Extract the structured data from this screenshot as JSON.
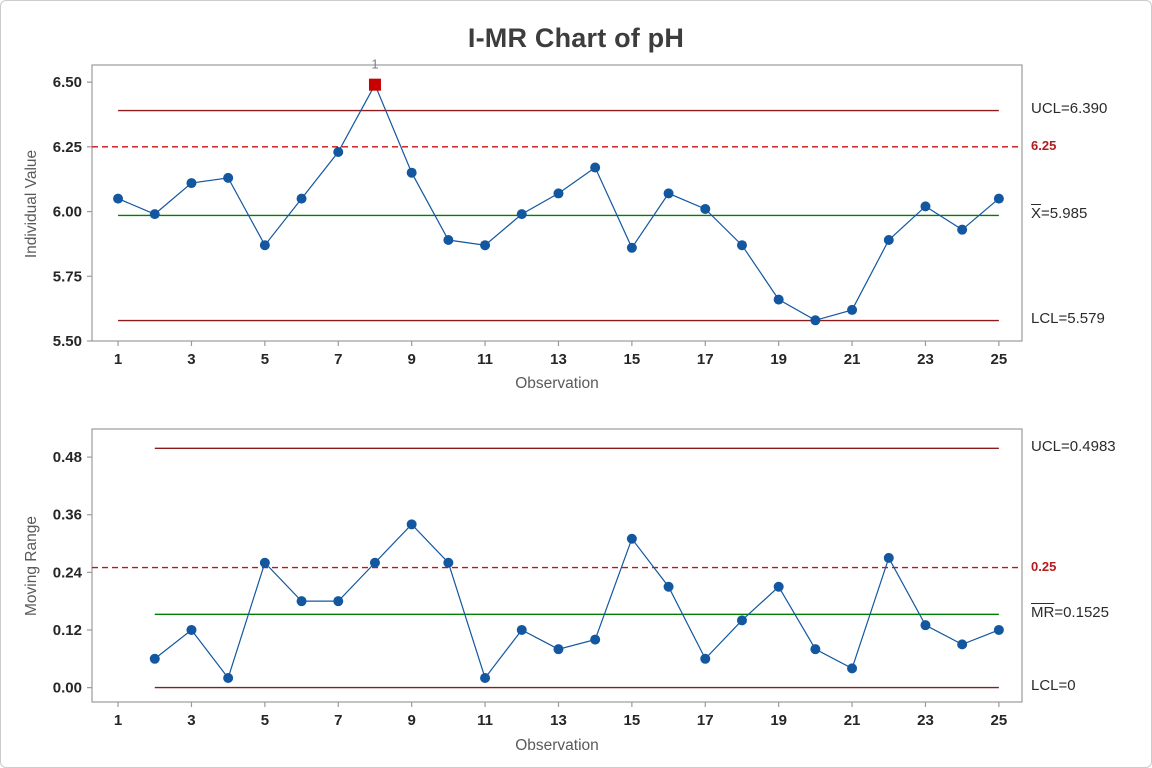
{
  "title": "I-MR Chart of pH",
  "chart_data": [
    {
      "type": "line",
      "name": "individuals-chart",
      "title": "I-MR Chart of pH",
      "xlabel": "Observation",
      "ylabel": "Individual Value",
      "x": [
        1,
        2,
        3,
        4,
        5,
        6,
        7,
        8,
        9,
        10,
        11,
        12,
        13,
        14,
        15,
        16,
        17,
        18,
        19,
        20,
        21,
        22,
        23,
        24,
        25
      ],
      "values": [
        6.05,
        5.99,
        6.11,
        6.13,
        5.87,
        6.05,
        6.23,
        6.49,
        6.15,
        5.89,
        5.87,
        5.99,
        6.07,
        6.17,
        5.86,
        6.07,
        6.01,
        5.87,
        5.66,
        5.58,
        5.62,
        5.89,
        6.02,
        5.93,
        6.05
      ],
      "out_of_control": [
        {
          "index": 8,
          "label": "1"
        }
      ],
      "xlim": [
        0.29,
        25.63
      ],
      "ylim": [
        5.5,
        6.566
      ],
      "y_ticks": [
        5.5,
        5.75,
        6.0,
        6.25,
        6.5
      ],
      "y_tick_labels": [
        "5.50",
        "5.75",
        "6.00",
        "6.25",
        "6.50"
      ],
      "x_ticks": [
        1,
        3,
        5,
        7,
        9,
        11,
        13,
        15,
        17,
        19,
        21,
        23,
        25
      ],
      "x_tick_labels": [
        "1",
        "3",
        "5",
        "7",
        "9",
        "11",
        "13",
        "15",
        "17",
        "19",
        "21",
        "23",
        "25"
      ],
      "grid": "off",
      "legend_position": "right-margin",
      "series_color": "#1257a0",
      "out_color": "#c80000",
      "ref_lines": [
        {
          "role": "ucl",
          "value": 6.39,
          "style": "solid",
          "color": "#8e1b1b"
        },
        {
          "role": "spec",
          "value": 6.25,
          "style": "dashed",
          "color": "#c41212"
        },
        {
          "role": "center",
          "value": 5.985,
          "style": "solid",
          "color": "#008000"
        },
        {
          "role": "lcl",
          "value": 5.579,
          "style": "solid",
          "color": "#8e1b1b"
        }
      ],
      "right_labels": {
        "ucl": "UCL=6.390",
        "spec": "6.25",
        "center_overline": "X",
        "center_rest": "=5.985",
        "lcl": "LCL=5.579"
      }
    },
    {
      "type": "line",
      "name": "moving-range-chart",
      "title": "",
      "xlabel": "Observation",
      "ylabel": "Moving Range",
      "x": [
        2,
        3,
        4,
        5,
        6,
        7,
        8,
        9,
        10,
        11,
        12,
        13,
        14,
        15,
        16,
        17,
        18,
        19,
        20,
        21,
        22,
        23,
        24,
        25
      ],
      "values": [
        0.06,
        0.12,
        0.02,
        0.26,
        0.18,
        0.18,
        0.26,
        0.34,
        0.26,
        0.02,
        0.12,
        0.08,
        0.1,
        0.31,
        0.21,
        0.06,
        0.14,
        0.21,
        0.08,
        0.04,
        0.27,
        0.13,
        0.09,
        0.12
      ],
      "out_of_control": [],
      "xlim": [
        0.29,
        25.63
      ],
      "ylim": [
        -0.03,
        0.5385
      ],
      "y_ticks": [
        0.0,
        0.12,
        0.24,
        0.36,
        0.48
      ],
      "y_tick_labels": [
        "0.00",
        "0.12",
        "0.24",
        "0.36",
        "0.48"
      ],
      "x_ticks": [
        1,
        3,
        5,
        7,
        9,
        11,
        13,
        15,
        17,
        19,
        21,
        23,
        25
      ],
      "x_tick_labels": [
        "1",
        "3",
        "5",
        "7",
        "9",
        "11",
        "13",
        "15",
        "17",
        "19",
        "21",
        "23",
        "25"
      ],
      "grid": "off",
      "legend_position": "right-margin",
      "series_color": "#1257a0",
      "out_color": "#c80000",
      "ref_lines": [
        {
          "role": "ucl",
          "value": 0.4983,
          "style": "solid",
          "color": "#8e1b1b"
        },
        {
          "role": "spec",
          "value": 0.25,
          "style": "dashed",
          "color": "#c41212"
        },
        {
          "role": "center",
          "value": 0.1525,
          "style": "solid",
          "color": "#008000"
        },
        {
          "role": "lcl",
          "value": 0,
          "style": "solid",
          "color": "#8e1b1b"
        }
      ],
      "right_labels": {
        "ucl": "UCL=0.4983",
        "spec": "0.25",
        "center_overline": "MR",
        "center_rest": "=0.1525",
        "lcl": "LCL=0"
      }
    }
  ]
}
